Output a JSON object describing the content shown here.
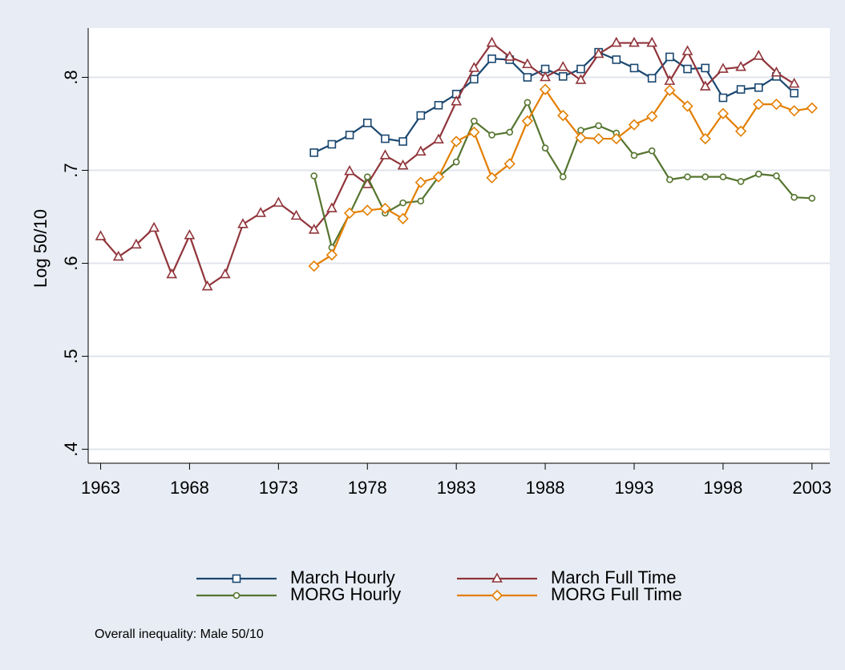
{
  "chart_data": {
    "type": "line",
    "y_label": "Log 50/10",
    "note": "Overall inequality: Male 50/10",
    "x": [
      1963,
      1964,
      1965,
      1966,
      1967,
      1968,
      1969,
      1970,
      1971,
      1972,
      1973,
      1974,
      1975,
      1976,
      1977,
      1978,
      1979,
      1980,
      1981,
      1982,
      1983,
      1984,
      1985,
      1986,
      1987,
      1988,
      1989,
      1990,
      1991,
      1992,
      1993,
      1994,
      1995,
      1996,
      1997,
      1998,
      1999,
      2000,
      2001,
      2002,
      2003
    ],
    "series": [
      {
        "name": "March Hourly",
        "color": "#1a476f",
        "marker": "square",
        "values": [
          null,
          null,
          null,
          null,
          null,
          null,
          null,
          null,
          null,
          null,
          null,
          null,
          0.719,
          0.728,
          0.738,
          0.751,
          0.734,
          0.731,
          0.759,
          0.77,
          0.782,
          0.798,
          0.82,
          0.819,
          0.8,
          0.809,
          0.801,
          0.809,
          0.827,
          0.819,
          0.81,
          0.799,
          0.822,
          0.809,
          0.81,
          0.778,
          0.787,
          0.789,
          0.801,
          0.783,
          null
        ]
      },
      {
        "name": "March Full Time",
        "color": "#90353b",
        "marker": "triangle",
        "values": [
          0.629,
          0.607,
          0.62,
          0.638,
          0.588,
          0.63,
          0.575,
          0.588,
          0.642,
          0.654,
          0.665,
          0.651,
          0.636,
          0.659,
          0.699,
          0.685,
          0.716,
          0.705,
          0.72,
          0.733,
          0.774,
          0.81,
          0.837,
          0.822,
          0.814,
          0.8,
          0.811,
          0.797,
          0.825,
          0.837,
          0.837,
          0.837,
          0.796,
          0.828,
          0.79,
          0.809,
          0.811,
          0.823,
          0.805,
          0.793,
          null
        ]
      },
      {
        "name": "MORG Hourly",
        "color": "#55752f",
        "marker": "circle",
        "values": [
          null,
          null,
          null,
          null,
          null,
          null,
          null,
          null,
          null,
          null,
          null,
          null,
          0.694,
          0.617,
          0.653,
          0.693,
          0.654,
          0.665,
          0.667,
          0.693,
          0.709,
          0.753,
          0.738,
          0.741,
          0.773,
          0.724,
          0.693,
          0.743,
          0.748,
          0.74,
          0.716,
          0.721,
          0.69,
          0.693,
          0.693,
          0.693,
          0.688,
          0.696,
          0.694,
          0.671,
          0.67
        ]
      },
      {
        "name": "MORG Full Time",
        "color": "#e37e00",
        "marker": "diamond",
        "values": [
          null,
          null,
          null,
          null,
          null,
          null,
          null,
          null,
          null,
          null,
          null,
          null,
          0.597,
          0.609,
          0.654,
          0.657,
          0.659,
          0.648,
          0.687,
          0.693,
          0.731,
          0.741,
          0.692,
          0.707,
          0.753,
          0.787,
          0.759,
          0.735,
          0.734,
          0.734,
          0.749,
          0.758,
          0.786,
          0.769,
          0.734,
          0.761,
          0.742,
          0.771,
          0.771,
          0.764,
          0.767
        ]
      }
    ],
    "xlim": [
      1962.3,
      2004
    ],
    "ylim": [
      0.385,
      0.853
    ],
    "xticks": [
      1963,
      1968,
      1973,
      1978,
      1983,
      1988,
      1993,
      1998,
      2003
    ],
    "yticks": [
      {
        "value": 0.4,
        "label": ".4"
      },
      {
        "value": 0.5,
        "label": ".5"
      },
      {
        "value": 0.6,
        "label": ".6"
      },
      {
        "value": 0.7,
        "label": ".7"
      },
      {
        "value": 0.8,
        "label": ".8"
      }
    ],
    "grid": true
  }
}
